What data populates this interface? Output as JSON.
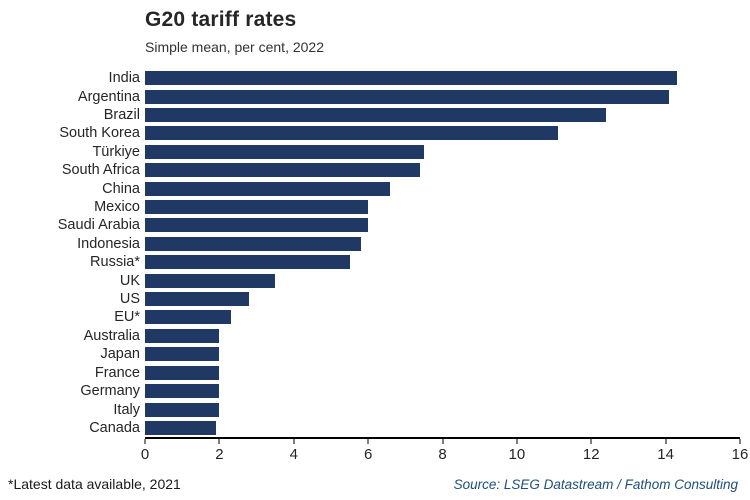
{
  "header": {
    "title": "G20 tariff rates",
    "subtitle": "Simple mean, per cent, 2022"
  },
  "footer": {
    "note": "*Latest data available, 2021",
    "source": "Source: LSEG Datastream / Fathom Consulting"
  },
  "colors": {
    "bar": "#1f3864",
    "axis": "#000000",
    "source_text": "#1f4e79"
  },
  "chart_data": {
    "type": "bar",
    "orientation": "horizontal",
    "title": "G20 tariff rates",
    "subtitle": "Simple mean, per cent, 2022",
    "categories": [
      "India",
      "Argentina",
      "Brazil",
      "South Korea",
      "Türkiye",
      "South Africa",
      "China",
      "Mexico",
      "Saudi Arabia",
      "Indonesia",
      "Russia*",
      "UK",
      "US",
      "EU*",
      "Australia",
      "Japan",
      "France",
      "Germany",
      "Italy",
      "Canada"
    ],
    "values": [
      14.3,
      14.1,
      12.4,
      11.1,
      7.5,
      7.4,
      6.6,
      6.0,
      6.0,
      5.8,
      5.5,
      3.5,
      2.8,
      2.3,
      2.0,
      2.0,
      2.0,
      2.0,
      2.0,
      1.9
    ],
    "xlabel": "",
    "ylabel": "",
    "xlim": [
      0,
      16
    ],
    "xticks": [
      0,
      2,
      4,
      6,
      8,
      10,
      12,
      14,
      16
    ],
    "grid": false,
    "legend": false,
    "footnote": "*Latest data available, 2021",
    "source": "Source: LSEG Datastream / Fathom Consulting"
  }
}
